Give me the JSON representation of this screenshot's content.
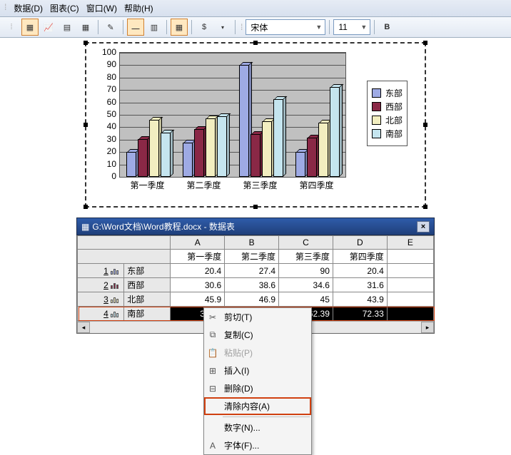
{
  "menu": {
    "data": "数据(D)",
    "chart": "图表(C)",
    "window": "窗口(W)",
    "help": "帮助(H)"
  },
  "toolbar": {
    "font_name": "宋体",
    "font_size": "11"
  },
  "chart": {
    "type": "bar",
    "categories": [
      "第一季度",
      "第二季度",
      "第三季度",
      "第四季度"
    ],
    "series": [
      {
        "name": "东部",
        "color": "#9eaae4",
        "values": [
          20.4,
          27.4,
          90,
          20.4
        ]
      },
      {
        "name": "西部",
        "color": "#8a2846",
        "values": [
          30.6,
          38.6,
          34.6,
          31.6
        ]
      },
      {
        "name": "北部",
        "color": "#f2eec0",
        "values": [
          45.9,
          46.9,
          45,
          43.9
        ]
      },
      {
        "name": "南部",
        "color": "#c5e5ef",
        "values": [
          35.56,
          48.76,
          62.39,
          72.33
        ]
      }
    ],
    "ylim": [
      0,
      100
    ],
    "ytick_step": 10,
    "grid_color": "#555555",
    "plot_bg": "#c0c0c0"
  },
  "datasheet": {
    "title": "G:\\Word文档\\Word教程.docx - 数据表",
    "col_headers": [
      "",
      "A",
      "B",
      "C",
      "D",
      "E"
    ],
    "sub_headers": [
      "",
      "第一季度",
      "第二季度",
      "第三季度",
      "第四季度",
      ""
    ],
    "rows": [
      {
        "num": "1",
        "label": "东部",
        "color": "#9eaae4",
        "cells": [
          "20.4",
          "27.4",
          "90",
          "20.4",
          ""
        ]
      },
      {
        "num": "2",
        "label": "西部",
        "color": "#8a2846",
        "cells": [
          "30.6",
          "38.6",
          "34.6",
          "31.6",
          ""
        ]
      },
      {
        "num": "3",
        "label": "北部",
        "color": "#f2eec0",
        "cells": [
          "45.9",
          "46.9",
          "45",
          "43.9",
          ""
        ]
      },
      {
        "num": "4",
        "label": "南部",
        "color": "#c5e5ef",
        "cells": [
          "35.56",
          "48.76",
          "62.39",
          "72.33",
          ""
        ],
        "selected": true
      }
    ]
  },
  "context_menu": {
    "cut": "剪切(T)",
    "copy": "复制(C)",
    "paste": "粘贴(P)",
    "insert": "插入(I)",
    "delete": "删除(D)",
    "clear": "清除内容(A)",
    "number": "数字(N)...",
    "font": "字体(F)..."
  }
}
